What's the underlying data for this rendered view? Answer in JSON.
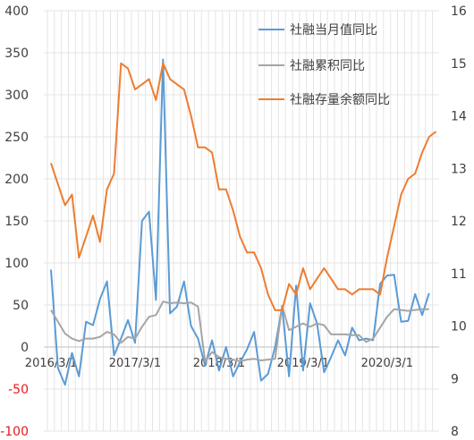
{
  "chart_data": {
    "type": "line",
    "title": "",
    "xlabel": "",
    "ylabel": "",
    "y_left": {
      "range": [
        -100,
        400
      ],
      "ticks": [
        -100,
        -50,
        0,
        50,
        100,
        150,
        200,
        250,
        300,
        350,
        400
      ],
      "labels": [
        "-100",
        "-50",
        "0",
        "50",
        "100",
        "150",
        "200",
        "250",
        "300",
        "350",
        "400"
      ]
    },
    "y_right": {
      "range": [
        8,
        16
      ],
      "ticks": [
        8,
        9,
        10,
        11,
        12,
        13,
        14,
        15,
        16
      ],
      "labels": [
        "8",
        "9",
        "10",
        "11",
        "12",
        "13",
        "14",
        "15",
        "16"
      ]
    },
    "x_tick_labels": [
      {
        "label": "2016/3/1",
        "index": 0
      },
      {
        "label": "2017/3/1",
        "index": 12
      },
      {
        "label": "2018/3/1",
        "index": 24
      },
      {
        "label": "2019/3/1",
        "index": 36
      },
      {
        "label": "2020/3/1",
        "index": 48
      }
    ],
    "x_start": "2016/3",
    "x_step": "1 month",
    "grid": true,
    "grid_style": "dense vertical gridlines, horizontal gridlines at left-axis ticks",
    "legend_position": "top-right",
    "series": [
      {
        "name": "社融当月值同比",
        "axis": "left",
        "color": "#5b9bd5",
        "values": [
          92,
          -25,
          -45,
          -7,
          -35,
          30,
          26,
          57,
          78,
          -10,
          10,
          32,
          5,
          150,
          161,
          56,
          342,
          40,
          48,
          78,
          25,
          10,
          -22,
          8,
          -28,
          0,
          -35,
          -18,
          -3,
          18,
          -40,
          -32,
          0,
          48,
          -35,
          73,
          -28,
          52,
          28,
          -30,
          -12,
          8,
          -10,
          23,
          8,
          10,
          8,
          75,
          85,
          86,
          30,
          31,
          63,
          38,
          64
        ]
      },
      {
        "name": "社融累积同比",
        "axis": "left",
        "color": "#a5a5a5",
        "values": [
          44,
          30,
          16,
          10,
          7,
          10,
          10,
          12,
          18,
          15,
          5,
          12,
          10,
          24,
          36,
          38,
          54,
          52,
          53,
          52,
          53,
          48,
          -17,
          -6,
          -12,
          -14,
          -15,
          -17,
          -15,
          -14,
          -16,
          -15,
          -14,
          49,
          20,
          24,
          28,
          24,
          28,
          26,
          15,
          15,
          15,
          14,
          14,
          6,
          10,
          23,
          36,
          45,
          44,
          43,
          44,
          45,
          45
        ]
      },
      {
        "name": "社融存量余额同比",
        "axis": "right",
        "color": "#ed7d31",
        "values": [
          13.1,
          12.7,
          12.3,
          12.5,
          11.3,
          11.7,
          12.1,
          11.6,
          12.6,
          12.9,
          15.0,
          14.9,
          14.5,
          14.6,
          14.7,
          14.3,
          15.0,
          14.7,
          14.6,
          14.5,
          14.0,
          13.4,
          13.4,
          13.3,
          12.6,
          12.6,
          12.2,
          11.7,
          11.4,
          11.4,
          11.1,
          10.6,
          10.3,
          10.3,
          10.8,
          10.6,
          11.1,
          10.7,
          10.9,
          11.1,
          10.9,
          10.7,
          10.7,
          10.6,
          10.7,
          10.7,
          10.7,
          10.6,
          11.3,
          11.9,
          12.5,
          12.8,
          12.9,
          13.3,
          13.6,
          13.7
        ]
      }
    ]
  }
}
